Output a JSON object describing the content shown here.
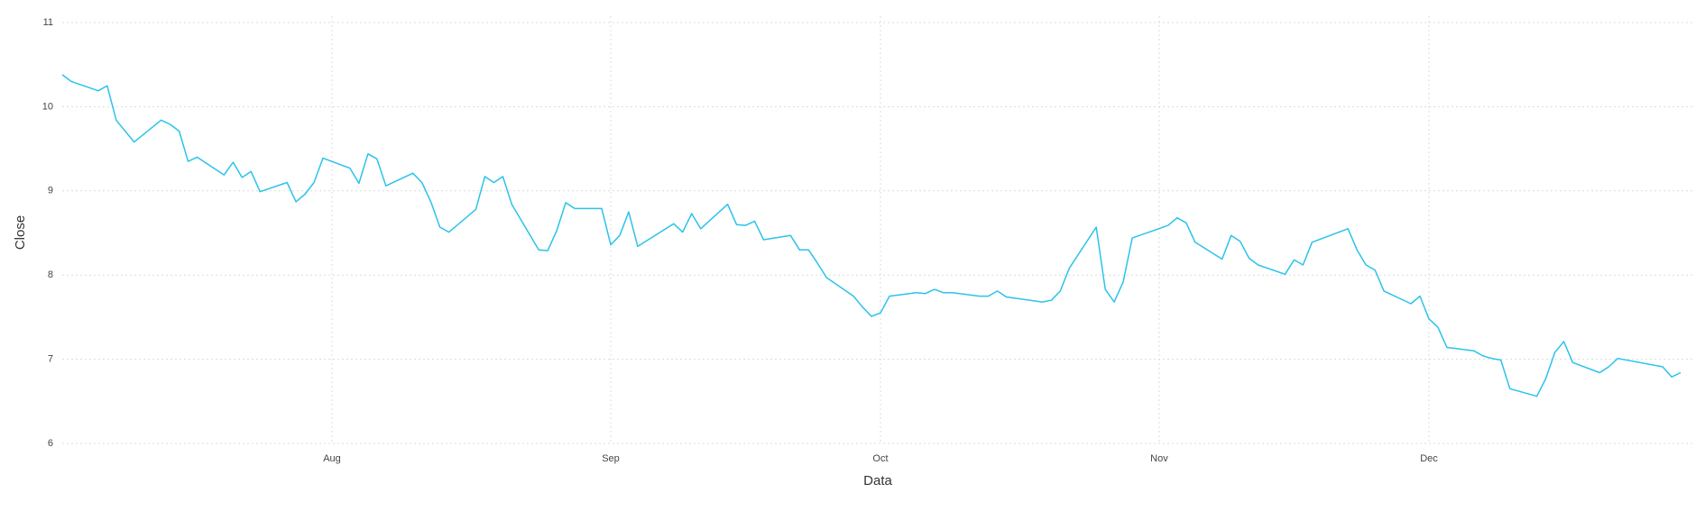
{
  "chart_data": {
    "type": "line",
    "xlabel": "Data",
    "ylabel": "Close",
    "x": [
      1,
      2,
      5,
      6,
      7,
      9,
      12,
      13,
      14,
      15,
      16,
      19,
      20,
      21,
      22,
      23,
      26,
      27,
      28,
      29,
      30,
      33,
      34,
      35,
      36,
      37,
      40,
      41,
      42,
      43,
      44,
      47,
      48,
      49,
      50,
      51,
      54,
      55,
      56,
      57,
      58,
      61,
      62,
      63,
      64,
      65,
      69,
      70,
      71,
      72,
      75,
      76,
      77,
      78,
      79,
      82,
      83,
      84,
      85,
      86,
      89,
      90,
      91,
      92,
      93,
      96,
      97,
      98,
      99,
      100,
      103,
      104,
      105,
      106,
      110,
      111,
      112,
      113,
      116,
      117,
      118,
      119,
      120,
      124,
      125,
      126,
      127,
      130,
      131,
      132,
      133,
      134,
      137,
      138,
      139,
      140,
      144,
      145,
      146,
      147,
      148,
      151,
      152,
      153,
      154,
      155,
      158,
      159,
      160,
      161,
      162,
      165,
      166,
      167,
      168,
      169,
      172,
      173,
      174,
      179,
      180,
      181
    ],
    "values": [
      10.38,
      10.3,
      10.19,
      10.25,
      9.84,
      9.58,
      9.84,
      9.79,
      9.71,
      9.35,
      9.4,
      9.19,
      9.34,
      9.16,
      9.23,
      8.99,
      9.1,
      8.87,
      8.96,
      9.1,
      9.39,
      9.27,
      9.09,
      9.44,
      9.38,
      9.06,
      9.21,
      9.1,
      8.87,
      8.57,
      8.51,
      8.78,
      9.17,
      9.1,
      9.17,
      8.84,
      8.3,
      8.29,
      8.53,
      8.86,
      8.79,
      8.79,
      8.36,
      8.47,
      8.75,
      8.34,
      8.61,
      8.51,
      8.73,
      8.55,
      8.84,
      8.6,
      8.59,
      8.64,
      8.42,
      8.47,
      8.3,
      8.3,
      8.14,
      7.97,
      7.75,
      7.62,
      7.51,
      7.55,
      7.75,
      7.79,
      7.78,
      7.83,
      7.79,
      7.79,
      7.75,
      7.75,
      7.81,
      7.74,
      7.68,
      7.7,
      7.81,
      8.08,
      8.57,
      7.83,
      7.68,
      7.92,
      8.44,
      8.59,
      8.68,
      8.62,
      8.39,
      8.19,
      8.47,
      8.4,
      8.2,
      8.12,
      8.01,
      8.18,
      8.12,
      8.39,
      8.55,
      8.3,
      8.12,
      8.06,
      7.81,
      7.66,
      7.75,
      7.48,
      7.38,
      7.14,
      7.1,
      7.04,
      7.01,
      6.99,
      6.65,
      6.56,
      6.77,
      7.08,
      7.21,
      6.96,
      6.84,
      6.91,
      7.01,
      6.91,
      6.79,
      6.84
    ],
    "color": "#2ac3ea",
    "xlim": [
      1,
      182.5
    ],
    "xticks": [
      {
        "value": 31,
        "label": "Aug"
      },
      {
        "value": 62,
        "label": "Sep"
      },
      {
        "value": 92,
        "label": "Oct"
      },
      {
        "value": 123,
        "label": "Nov"
      },
      {
        "value": 153,
        "label": "Dec"
      }
    ],
    "ylim": [
      6,
      11
    ],
    "yticks": [
      6,
      7,
      8,
      9,
      10,
      11
    ],
    "grid": true
  }
}
